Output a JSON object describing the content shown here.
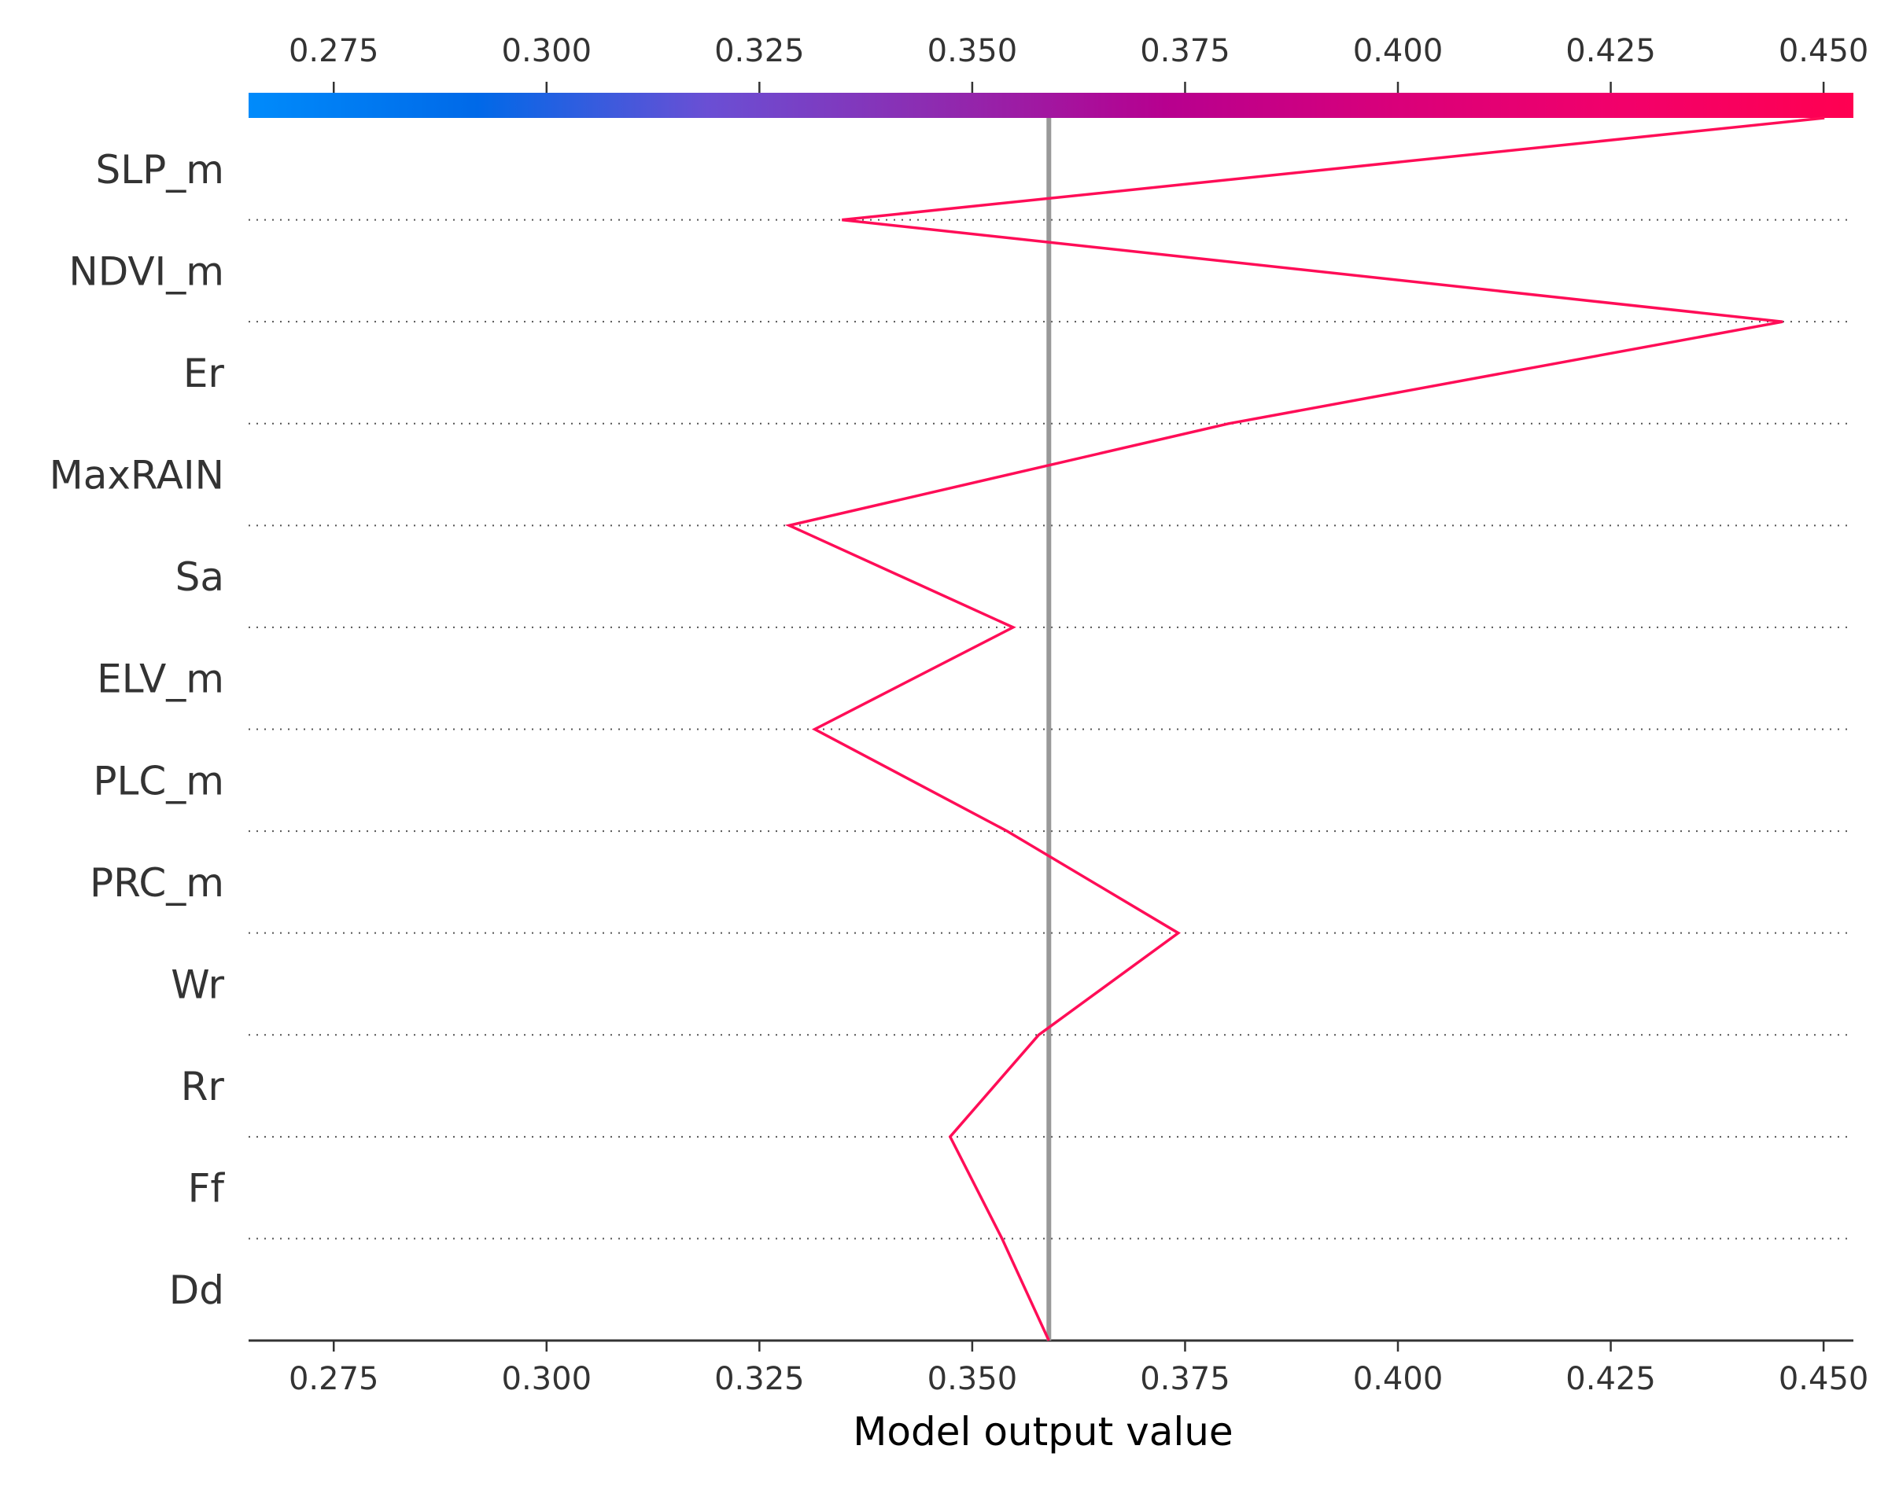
{
  "chart_data": {
    "type": "line",
    "subtype": "shap-decision-plot",
    "xlabel": "Model output value",
    "xlim": [
      0.265,
      0.4535
    ],
    "base_value": 0.359,
    "ticks": [
      0.275,
      0.3,
      0.325,
      0.35,
      0.375,
      0.4,
      0.425,
      0.45
    ],
    "tick_labels": [
      "0.275",
      "0.300",
      "0.325",
      "0.350",
      "0.375",
      "0.400",
      "0.425",
      "0.450"
    ],
    "features": [
      "SLP_m",
      "NDVI_m",
      "Er",
      "MaxRAIN",
      "Sa",
      "ELV_m",
      "PLC_m",
      "PRC_m",
      "Wr",
      "Rr",
      "Ff",
      "Dd"
    ],
    "path_values": [
      0.4501,
      0.3347,
      0.4452,
      0.3801,
      0.3285,
      0.3548,
      0.3315,
      0.3541,
      0.3742,
      0.3578,
      0.3474,
      0.3535,
      0.359
    ],
    "line_color": "#ff0d57",
    "base_line_color": "#999999",
    "colorbar_stops": [
      "#008bfb",
      "#0069e8",
      "#6a4fd4",
      "#8e2bb0",
      "#b7008f",
      "#d9007a",
      "#f2006a",
      "#ff0051"
    ],
    "grid": "dotted-horizontal"
  }
}
